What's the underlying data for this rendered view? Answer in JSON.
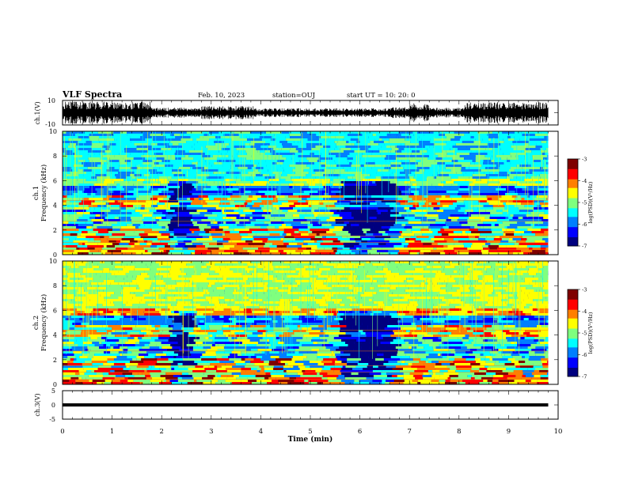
{
  "header": {
    "title": "VLF Spectra",
    "date": "Feb. 10, 2023",
    "station": "station=OUJ",
    "start": "start  UT =  10: 20: 0"
  },
  "chart_data": [
    {
      "type": "line",
      "panel": "ch.1 waveform",
      "ylabel": "ch.1(V)",
      "ylim": [
        -10,
        10
      ],
      "yticks": [
        "10",
        "-10"
      ],
      "xlim": [
        0,
        10
      ],
      "series": [
        {
          "style": "dense black waveform",
          "envelope_note": "bursty, larger bursts near 0-1.8, 7-7.4, 8.1-9.8 min"
        }
      ]
    },
    {
      "type": "heatmap",
      "panel": "ch.1 spectrogram",
      "ylabel": "ch.1\nFrequency (kHz)",
      "ylim": [
        0,
        10
      ],
      "yticks": [
        "0",
        "2",
        "4",
        "6",
        "8",
        "10"
      ],
      "xlim": [
        0,
        9.8
      ],
      "colorbar": {
        "label": "log(PSD)(V²/Hz)",
        "range": [
          -7,
          -3
        ],
        "ticks": [
          "-3",
          "-4",
          "-5",
          "-6",
          "-7"
        ]
      },
      "colors": [
        "#00007f",
        "#0000ff",
        "#007fff",
        "#00ffff",
        "#7fff7f",
        "#ffff00",
        "#ff7f00",
        "#ff0000",
        "#7f0000"
      ],
      "dark_intervals_min": [
        [
          2.1,
          2.5
        ],
        [
          5.5,
          6.6
        ]
      ]
    },
    {
      "type": "heatmap",
      "panel": "ch.2 spectrogram",
      "ylabel": "ch.2\nFrequency (kHz)",
      "ylim": [
        0,
        10
      ],
      "yticks": [
        "0",
        "2",
        "4",
        "6",
        "8",
        "10"
      ],
      "xlim": [
        0,
        9.8
      ],
      "colorbar": {
        "label": "log(PSD)(V²/Hz)",
        "range": [
          -7,
          -3
        ],
        "ticks": [
          "-3",
          "-4",
          "-5",
          "-6",
          "-7"
        ]
      },
      "colors": [
        "#00007f",
        "#0000ff",
        "#007fff",
        "#00ffff",
        "#7fff7f",
        "#ffff00",
        "#ff7f00",
        "#ff0000",
        "#7f0000"
      ],
      "dark_intervals_min": [
        [
          2.1,
          2.5
        ],
        [
          5.5,
          6.6
        ]
      ]
    },
    {
      "type": "line",
      "panel": "ch.3 waveform",
      "ylabel": "ch.3(V)",
      "ylim": [
        -5,
        5
      ],
      "yticks": [
        "5",
        "0",
        "-5"
      ],
      "xlim": [
        0,
        10
      ],
      "series": [
        {
          "x": [
            0,
            9.8
          ],
          "y": [
            0,
            0
          ]
        }
      ]
    }
  ],
  "xaxis": {
    "label": "Time (min)",
    "ticks": [
      "0",
      "1",
      "2",
      "3",
      "4",
      "5",
      "6",
      "7",
      "8",
      "9",
      "10"
    ]
  }
}
